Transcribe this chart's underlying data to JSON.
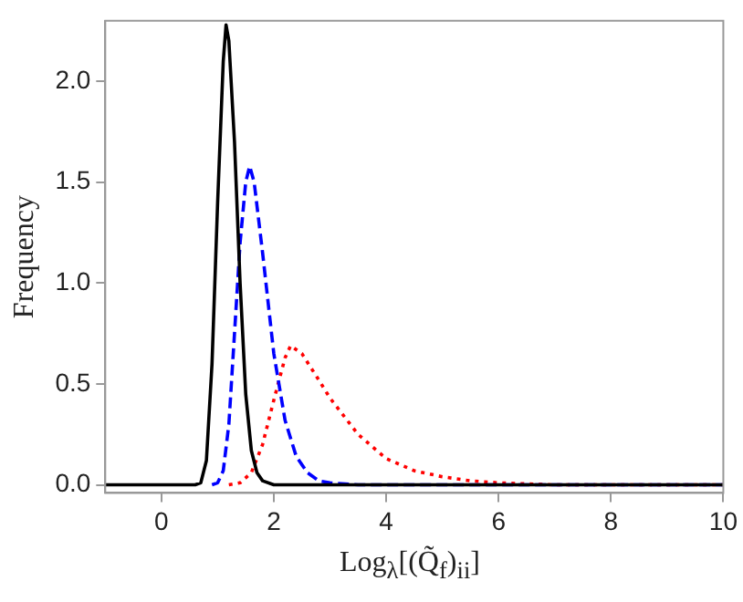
{
  "chart_data": {
    "type": "line",
    "xlabel": "Log$_{λ}$[(Q̃$_{f}$)$_{ii}$]",
    "ylabel": "Frequency",
    "xlim": [
      -1,
      10
    ],
    "ylim": [
      -0.04,
      2.3
    ],
    "xticks": [
      0,
      2,
      4,
      6,
      8,
      10
    ],
    "yticks": [
      {
        "value": 0,
        "label": "0.0"
      },
      {
        "value": 0.5,
        "label": "0.5"
      },
      {
        "value": 1,
        "label": "1.0"
      },
      {
        "value": 1.5,
        "label": "1.5"
      },
      {
        "value": 2,
        "label": "2.0"
      }
    ],
    "grid": false,
    "legend": false,
    "marker": "none",
    "series": [
      {
        "color": "#000000",
        "line_style": "solid",
        "x": [
          -1,
          0.6,
          0.7,
          0.8,
          0.9,
          1.0,
          1.1,
          1.15,
          1.2,
          1.3,
          1.4,
          1.5,
          1.6,
          1.7,
          1.8,
          2.0,
          10
        ],
        "values": [
          0,
          0,
          0.01,
          0.12,
          0.6,
          1.4,
          2.1,
          2.28,
          2.2,
          1.7,
          1.0,
          0.45,
          0.17,
          0.06,
          0.02,
          0,
          0
        ]
      },
      {
        "color": "#0000ff",
        "line_style": "dashed",
        "x": [
          0.9,
          1.0,
          1.1,
          1.2,
          1.3,
          1.4,
          1.5,
          1.57,
          1.65,
          1.8,
          2.0,
          2.2,
          2.4,
          2.6,
          2.8,
          3.0,
          3.5,
          10
        ],
        "values": [
          0,
          0.01,
          0.07,
          0.3,
          0.75,
          1.2,
          1.5,
          1.58,
          1.5,
          1.15,
          0.65,
          0.32,
          0.14,
          0.06,
          0.02,
          0.01,
          0,
          0
        ]
      },
      {
        "color": "#ff0000",
        "line_style": "dotted",
        "x": [
          1.2,
          1.4,
          1.6,
          1.8,
          2.0,
          2.2,
          2.3,
          2.5,
          2.8,
          3.0,
          3.5,
          4.0,
          4.5,
          5.0,
          5.5,
          6.0,
          7,
          10
        ],
        "values": [
          0,
          0.01,
          0.06,
          0.2,
          0.42,
          0.63,
          0.69,
          0.65,
          0.52,
          0.43,
          0.25,
          0.13,
          0.07,
          0.04,
          0.02,
          0.01,
          0,
          0
        ]
      }
    ]
  }
}
